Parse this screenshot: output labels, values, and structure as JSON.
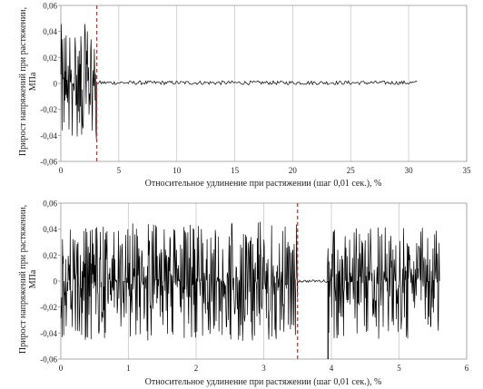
{
  "chart_data": [
    {
      "type": "line",
      "xlabel": "Относительное удлинение при растяжении (шаг 0,01 сек.), %",
      "ylabel": [
        "Прирост напряжений при растяжении,",
        "MПа"
      ],
      "xlim": [
        0,
        35
      ],
      "ylim": [
        -0.06,
        0.06
      ],
      "x_ticks": [
        0,
        5,
        10,
        15,
        20,
        25,
        30,
        35
      ],
      "y_ticks": [
        -0.06,
        -0.04,
        -0.02,
        0,
        0.02,
        0.04,
        0.06
      ],
      "x_tick_labels": [
        "0",
        "5",
        "10",
        "15",
        "20",
        "25",
        "30",
        "35"
      ],
      "y_tick_labels": [
        "-0,06",
        "-0,04",
        "-0,02",
        "0",
        "0,02",
        "0,04",
        "0,06"
      ],
      "grid": "vertical",
      "series": [
        {
          "color": "#000000",
          "segments": [
            {
              "x_from": 0,
              "x_to": 3.1,
              "noise": "high",
              "low": -0.044,
              "high": 0.046
            },
            {
              "x_from": 3.1,
              "x_to": 30.8,
              "noise": "flat",
              "low": -0.001,
              "high": 0.002
            }
          ]
        }
      ],
      "reference_line": {
        "x": 3.1,
        "color": "#c0392b",
        "style": "dashed"
      }
    },
    {
      "type": "line",
      "xlabel": "Относительное удлинение при растяжении (шаг 0,01 сек.), %",
      "ylabel": [
        "Прирост напряжений при растяжении,",
        "MПа"
      ],
      "xlim": [
        0,
        6
      ],
      "ylim": [
        -0.06,
        0.06
      ],
      "x_ticks": [
        0,
        1,
        2,
        3,
        4,
        5,
        6
      ],
      "y_ticks": [
        -0.06,
        -0.04,
        -0.02,
        0,
        0.02,
        0.04,
        0.06
      ],
      "x_tick_labels": [
        "0",
        "1",
        "2",
        "3",
        "4",
        "5",
        "6"
      ],
      "y_tick_labels": [
        "-0,06",
        "-0,04",
        "-0,02",
        "0",
        "0,02",
        "0,04",
        "0,06"
      ],
      "grid": "vertical",
      "series": [
        {
          "color": "#000000",
          "segments": [
            {
              "x_from": 0,
              "x_to": 3.5,
              "noise": "high",
              "low": -0.046,
              "high": 0.046
            },
            {
              "x_from": 3.5,
              "x_to": 3.95,
              "noise": "flat",
              "low": -0.001,
              "high": 0.001
            },
            {
              "x_from": 3.95,
              "x_to": 5.6,
              "noise": "high",
              "low": -0.046,
              "high": 0.042
            }
          ],
          "spike": {
            "x": 3.95,
            "low": -0.06,
            "high": 0.0
          }
        }
      ],
      "reference_line": {
        "x": 3.5,
        "color": "#c0392b",
        "style": "dashed"
      }
    }
  ]
}
